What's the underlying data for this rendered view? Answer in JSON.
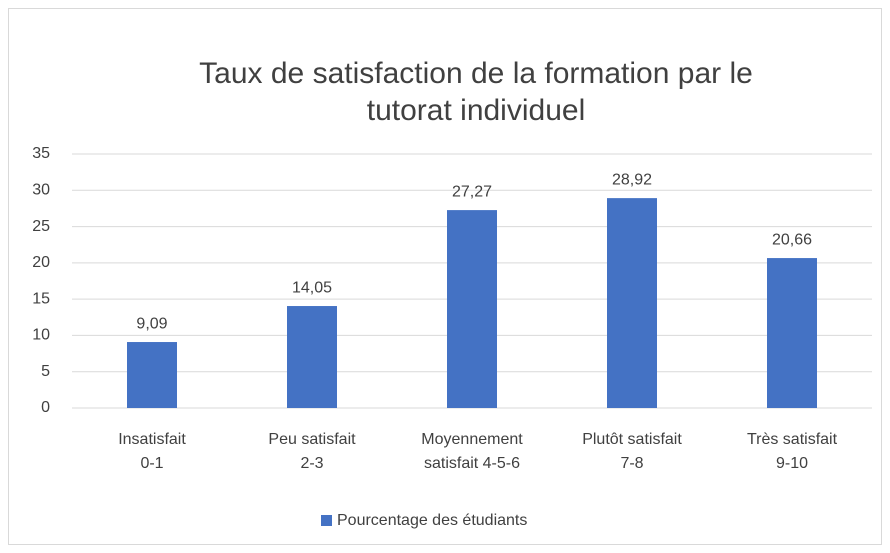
{
  "chart_data": {
    "type": "bar",
    "title": [
      "Taux de satisfaction de la formation par le",
      "tutorat individuel"
    ],
    "categories": [
      [
        "Insatisfait",
        "0-1"
      ],
      [
        "Peu satisfait",
        "2-3"
      ],
      [
        "Moyennement",
        "satisfait 4-5-6"
      ],
      [
        "Plutôt satisfait",
        "7-8"
      ],
      [
        "Très satisfait",
        "9-10"
      ]
    ],
    "series": [
      {
        "name": "Pourcentage des étudiants",
        "color": "#4472c4",
        "values": [
          9.09,
          14.05,
          27.27,
          28.92,
          20.66
        ],
        "value_labels": [
          "9,09",
          "14,05",
          "27,27",
          "28,92",
          "20,66"
        ]
      }
    ],
    "ylim": [
      0,
      35
    ],
    "yticks": [
      0,
      5,
      10,
      15,
      20,
      25,
      30,
      35
    ],
    "grid": true,
    "legend": "bottom"
  }
}
